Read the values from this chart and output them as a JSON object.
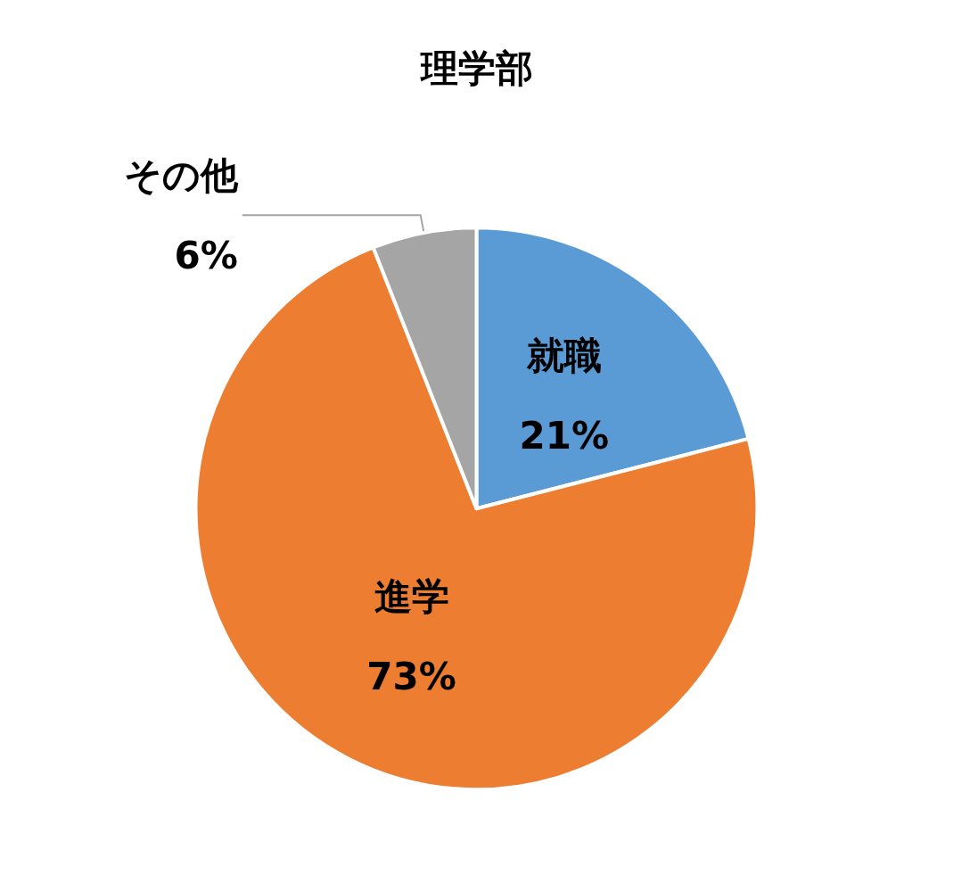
{
  "chart_data": {
    "type": "pie",
    "title": "理学部",
    "categories": [
      "就職",
      "進学",
      "その他"
    ],
    "values": [
      21,
      73,
      6
    ],
    "colors": [
      "#5b9bd5",
      "#ed7d31",
      "#a5a5a5"
    ],
    "value_labels": [
      "21%",
      "73%",
      "6%"
    ],
    "legend": false
  }
}
